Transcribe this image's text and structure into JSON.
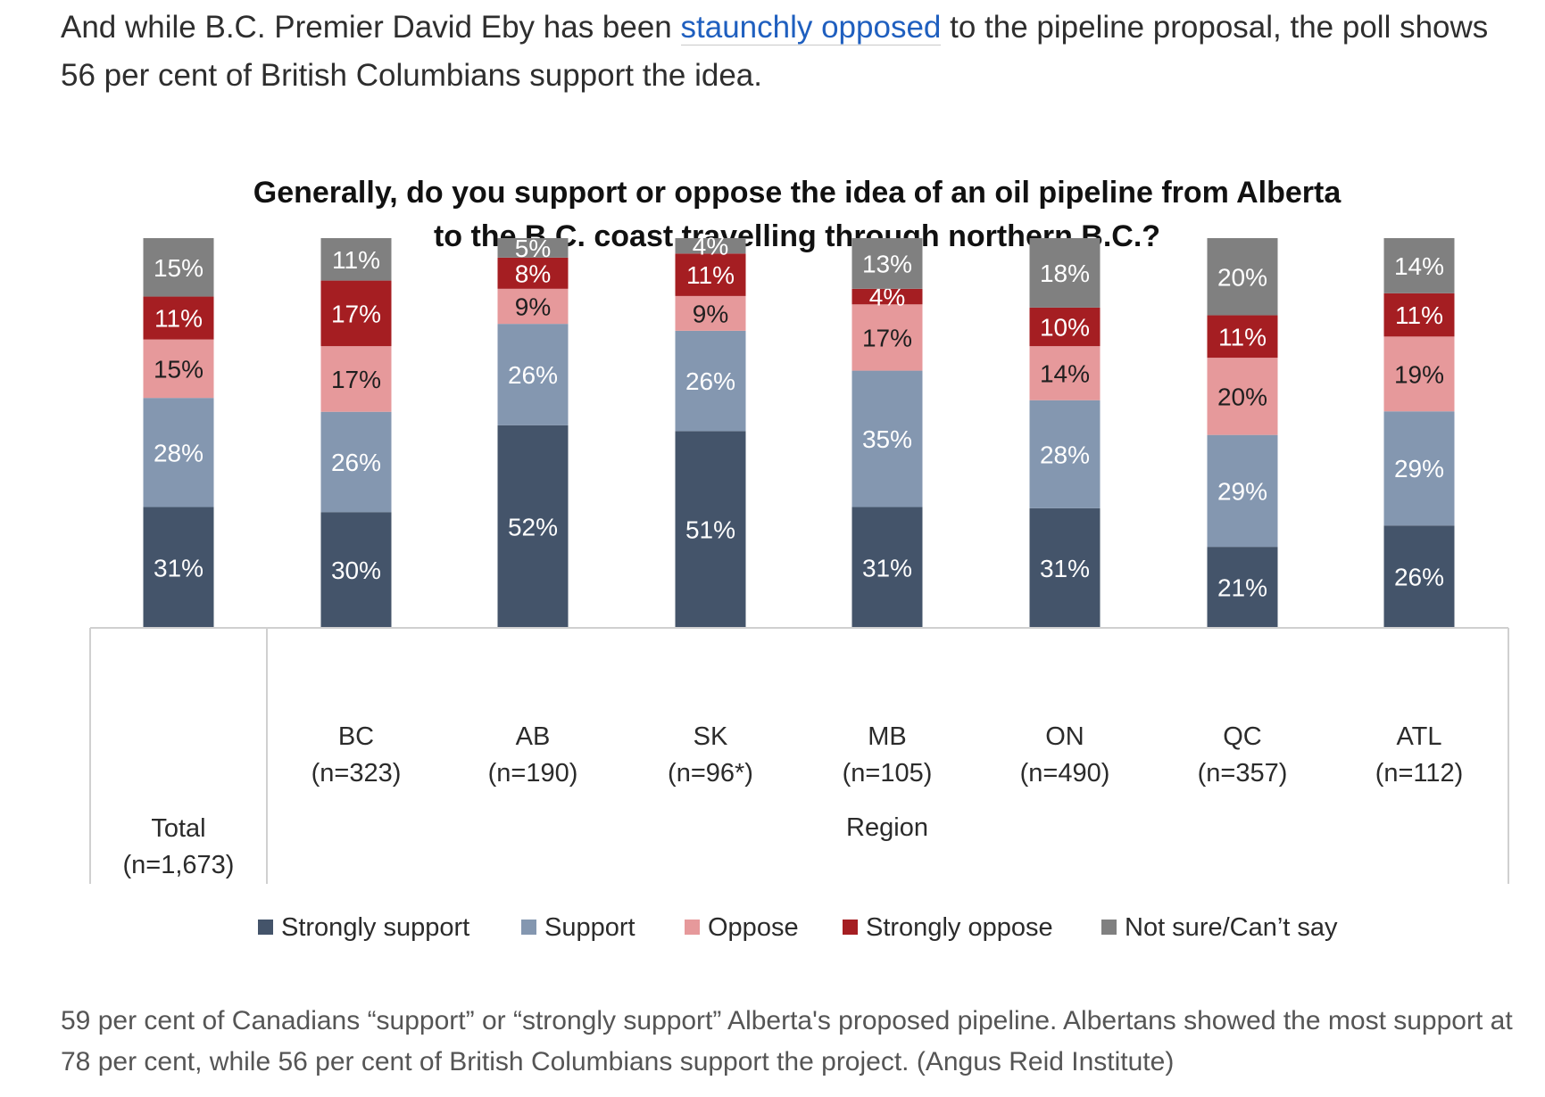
{
  "article": {
    "intro_before": "And while B.C. Premier David Eby has been ",
    "intro_link": "staunchly opposed",
    "intro_after": " to the pipeline proposal, the poll shows 56 per cent of British Columbians support the idea.",
    "caption": "59 per cent of Canadians “support” or “strongly support” Alberta's proposed pipeline. Albertans showed the most support at 78 per cent, while 56 per cent of British Columbians support the project. (Angus Reid Institute)"
  },
  "chart_data": {
    "type": "bar",
    "stacked": true,
    "title": "Generally, do you support or oppose the idea of an oil pipeline from Alberta to the B.C. coast travelling through northern B.C.?",
    "title_lines": [
      "Generally, do you support or oppose the idea of an oil pipeline from Alberta",
      "to the B.C. coast travelling through northern B.C.?"
    ],
    "categories": [
      "Total",
      "BC",
      "AB",
      "SK",
      "MB",
      "ON",
      "QC",
      "ATL"
    ],
    "category_sublabels": [
      "(n=1,673)",
      "(n=323)",
      "(n=190)",
      "(n=96*)",
      "(n=105)",
      "(n=490)",
      "(n=357)",
      "(n=112)"
    ],
    "group_label": "Region",
    "ylim": [
      0,
      100
    ],
    "legend_position": "bottom",
    "grid": false,
    "series": [
      {
        "name": "Strongly support",
        "color": "#44546a",
        "label_color": "#ffffff",
        "values": [
          31,
          30,
          52,
          51,
          31,
          31,
          21,
          26
        ]
      },
      {
        "name": "Support",
        "color": "#8497b0",
        "label_color": "#ffffff",
        "values": [
          28,
          26,
          26,
          26,
          35,
          28,
          29,
          29
        ]
      },
      {
        "name": "Oppose",
        "color": "#e6999b",
        "label_color": "#1f1f1f",
        "values": [
          15,
          17,
          9,
          9,
          17,
          14,
          20,
          19
        ]
      },
      {
        "name": "Strongly oppose",
        "color": "#a51e22",
        "label_color": "#ffffff",
        "values": [
          11,
          17,
          8,
          11,
          4,
          10,
          11,
          11
        ]
      },
      {
        "name": "Not sure/Can’t say",
        "color": "#808080",
        "label_color": "#ffffff",
        "values": [
          15,
          11,
          5,
          4,
          13,
          18,
          20,
          14
        ]
      }
    ]
  }
}
